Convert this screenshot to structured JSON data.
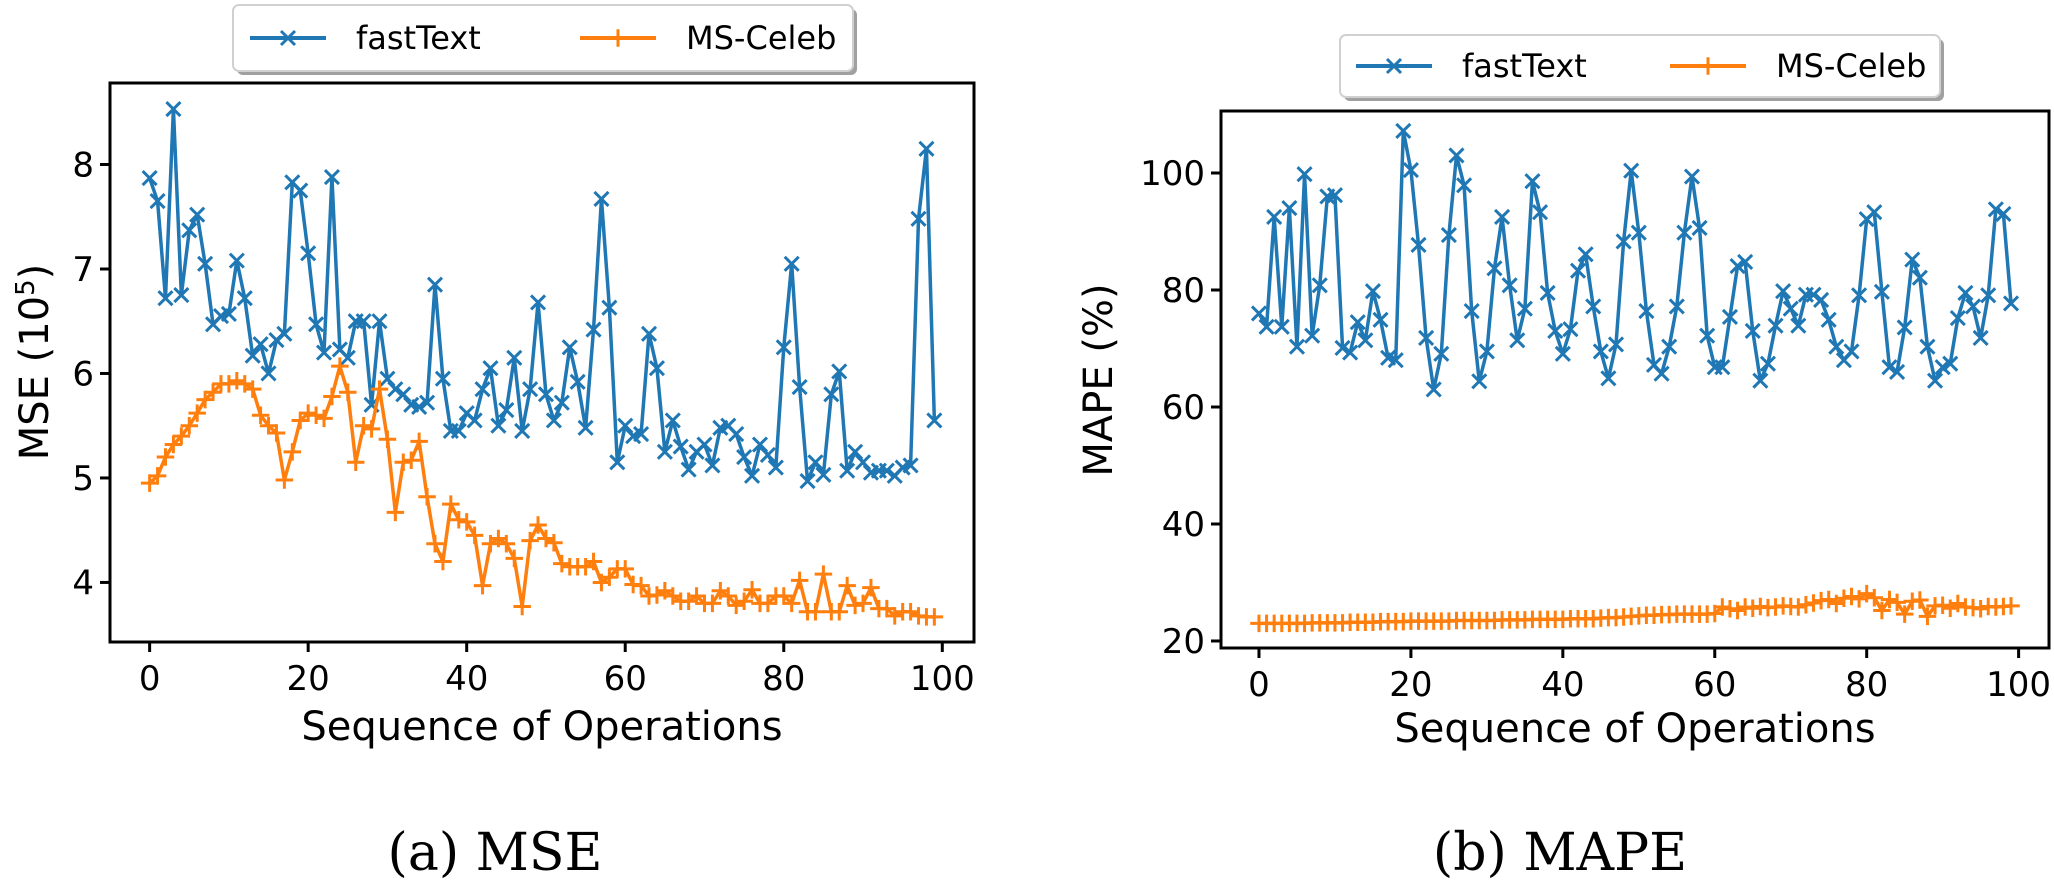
{
  "chart_data": [
    {
      "type": "line",
      "panel": "a",
      "caption": "(a)  MSE",
      "title": "",
      "xlabel": "Sequence of Operations",
      "ylabel": "MSE (10",
      "ylabel_sup": "5",
      "ylabel_close": ")",
      "xlim": [
        -5,
        104
      ],
      "ylim": [
        3.43,
        8.78
      ],
      "xticks": [
        0,
        20,
        40,
        60,
        80,
        100
      ],
      "xtick_labels": [
        "0",
        "20",
        "40",
        "60",
        "80",
        "100"
      ],
      "yticks": [
        4,
        5,
        6,
        7,
        8
      ],
      "ytick_labels": [
        "4",
        "5",
        "6",
        "7",
        "8"
      ],
      "grid": false,
      "legend_position": "top-center-outside",
      "x": "range(0,100)",
      "series": [
        {
          "name": "fastText",
          "color": "#1f77b4",
          "marker": "x",
          "values": [
            7.87,
            7.65,
            6.72,
            8.53,
            6.75,
            7.37,
            7.52,
            7.05,
            6.47,
            6.55,
            6.57,
            7.08,
            6.72,
            6.17,
            6.28,
            6.0,
            6.32,
            6.38,
            7.83,
            7.75,
            7.15,
            6.47,
            6.2,
            7.88,
            6.23,
            6.15,
            6.5,
            6.5,
            5.7,
            6.5,
            5.95,
            5.85,
            5.8,
            5.7,
            5.68,
            5.72,
            6.85,
            5.95,
            5.45,
            5.45,
            5.62,
            5.55,
            5.85,
            6.05,
            5.5,
            5.65,
            6.15,
            5.45,
            5.85,
            6.68,
            5.8,
            5.55,
            5.72,
            6.25,
            5.92,
            5.48,
            6.42,
            7.67,
            6.63,
            5.15,
            5.5,
            5.4,
            5.42,
            6.38,
            6.05,
            5.25,
            5.55,
            5.3,
            5.08,
            5.25,
            5.32,
            5.12,
            5.48,
            5.5,
            5.42,
            5.2,
            5.02,
            5.32,
            5.22,
            5.1,
            6.25,
            7.05,
            5.87,
            4.97,
            5.15,
            5.03,
            5.8,
            6.02,
            5.07,
            5.25,
            5.15,
            5.05,
            5.07,
            5.07,
            5.02,
            5.1,
            5.12,
            7.48,
            8.15,
            5.55
          ]
        },
        {
          "name": "MS-Celeb",
          "color": "#ff7f0e",
          "marker": "+",
          "values": [
            4.95,
            5.02,
            5.2,
            5.32,
            5.4,
            5.5,
            5.62,
            5.75,
            5.82,
            5.9,
            5.9,
            5.93,
            5.9,
            5.85,
            5.6,
            5.5,
            5.43,
            4.98,
            5.25,
            5.55,
            5.62,
            5.6,
            5.57,
            5.78,
            6.07,
            5.82,
            5.15,
            5.5,
            5.47,
            5.85,
            5.37,
            4.67,
            5.15,
            5.17,
            5.35,
            4.82,
            4.37,
            4.2,
            4.75,
            4.6,
            4.58,
            4.45,
            3.97,
            4.37,
            4.42,
            4.37,
            4.23,
            3.77,
            4.4,
            4.55,
            4.42,
            4.38,
            4.18,
            4.15,
            4.15,
            4.15,
            4.2,
            4.0,
            4.05,
            4.13,
            4.13,
            3.98,
            3.97,
            3.87,
            3.88,
            3.92,
            3.87,
            3.82,
            3.82,
            3.87,
            3.8,
            3.8,
            3.92,
            3.87,
            3.78,
            3.82,
            3.93,
            3.8,
            3.8,
            3.87,
            3.87,
            3.8,
            4.02,
            3.72,
            3.72,
            4.08,
            3.72,
            3.72,
            3.97,
            3.78,
            3.8,
            3.95,
            3.75,
            3.75,
            3.68,
            3.72,
            3.72,
            3.68,
            3.67,
            3.67
          ]
        }
      ]
    },
    {
      "type": "line",
      "panel": "b",
      "caption": "(b)  MAPE",
      "title": "",
      "xlabel": "Sequence of Operations",
      "ylabel": "MAPE (%)",
      "xlim": [
        -5,
        104
      ],
      "ylim": [
        18.8,
        110.6
      ],
      "xticks": [
        0,
        20,
        40,
        60,
        80,
        100
      ],
      "xtick_labels": [
        "0",
        "20",
        "40",
        "60",
        "80",
        "100"
      ],
      "yticks": [
        20,
        40,
        60,
        80,
        100
      ],
      "ytick_labels": [
        "20",
        "40",
        "60",
        "80",
        "100"
      ],
      "grid": false,
      "legend_position": "top-center-outside",
      "x": "range(0,100)",
      "series": [
        {
          "name": "fastText",
          "color": "#1f77b4",
          "marker": "x",
          "values": [
            76,
            73.7,
            92.5,
            73.7,
            94,
            70.3,
            99.8,
            72.2,
            80.8,
            96,
            96.2,
            70.1,
            69.3,
            74.5,
            71.4,
            79.8,
            74.9,
            68.4,
            68,
            107.2,
            100.5,
            87.7,
            71.8,
            63,
            69.1,
            89.4,
            103,
            97.9,
            76.4,
            64.4,
            69.5,
            83.7,
            92.5,
            80.8,
            71.4,
            76.8,
            98.6,
            93.3,
            79.5,
            73,
            69.1,
            73.3,
            83.3,
            86.1,
            77.2,
            69.5,
            64.9,
            70.7,
            88.3,
            100.4,
            89.8,
            76.4,
            67.2,
            65.7,
            70.3,
            77.2,
            89.8,
            99.4,
            90.6,
            72.2,
            66.8,
            66.8,
            75.4,
            84.1,
            84.8,
            73,
            64.5,
            67.4,
            73.9,
            79.8,
            76.8,
            73.9,
            79.2,
            79.2,
            78.3,
            74.9,
            70.3,
            68,
            69.5,
            79.1,
            92.1,
            93.3,
            79.7,
            66.8,
            66,
            73.6,
            85.2,
            82.1,
            70.3,
            64.5,
            66.8,
            67.4,
            75.2,
            79.5,
            77.2,
            71.8,
            79.1,
            93.8,
            93,
            77.7
          ]
        },
        {
          "name": "MS-Celeb",
          "color": "#ff7f0e",
          "marker": "+",
          "values": [
            23,
            23,
            23,
            23,
            23,
            23,
            23,
            23.1,
            23.1,
            23.1,
            23.1,
            23.1,
            23.2,
            23.2,
            23.2,
            23.2,
            23.3,
            23.3,
            23.3,
            23.3,
            23.4,
            23.4,
            23.4,
            23.4,
            23.4,
            23.4,
            23.5,
            23.5,
            23.5,
            23.5,
            23.5,
            23.5,
            23.6,
            23.6,
            23.6,
            23.6,
            23.7,
            23.7,
            23.7,
            23.7,
            23.7,
            23.8,
            23.8,
            23.8,
            23.8,
            23.9,
            24,
            24,
            24.1,
            24.2,
            24.3,
            24.4,
            24.4,
            24.5,
            24.5,
            24.6,
            24.6,
            24.6,
            24.6,
            24.6,
            24.7,
            25.8,
            25.5,
            25.2,
            25.8,
            25.6,
            25.9,
            25.7,
            25.8,
            26,
            25.9,
            25.8,
            26.2,
            26.5,
            26.9,
            27.1,
            26.4,
            27.3,
            27.6,
            27.2,
            28.1,
            27.4,
            25.2,
            27.1,
            26.6,
            24.6,
            26.8,
            27,
            24.2,
            26,
            26.1,
            25.6,
            26.4,
            25.8,
            25.7,
            25.5,
            25.9,
            25.8,
            25.9,
            26
          ]
        }
      ]
    }
  ]
}
